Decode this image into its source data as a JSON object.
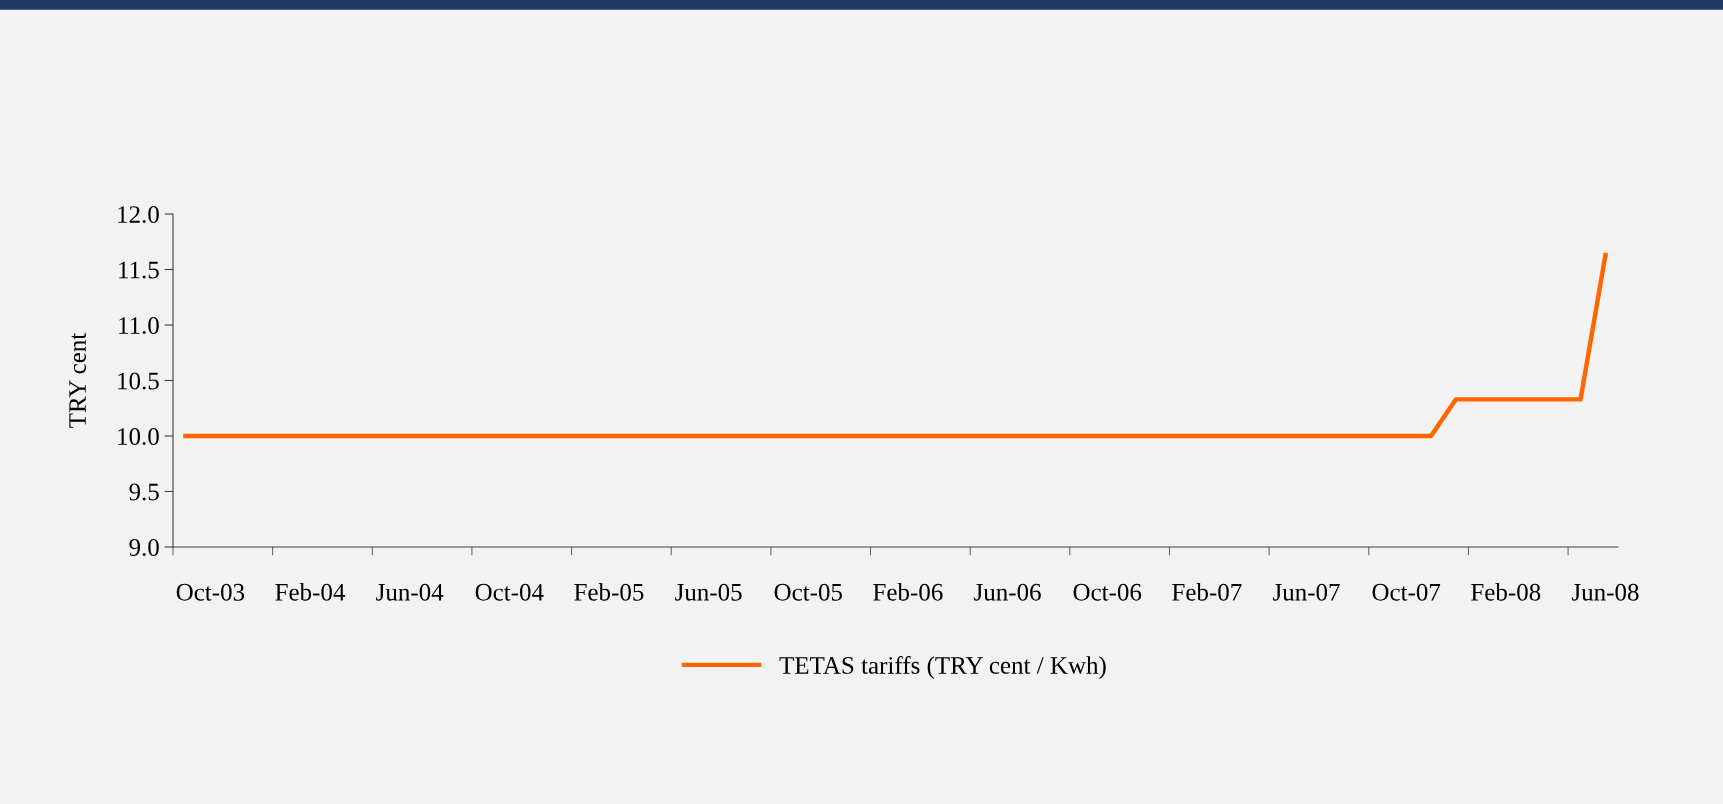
{
  "chart_data": {
    "type": "line",
    "ylabel": "TRY cent",
    "categories": [
      null,
      "Oct-03",
      null,
      null,
      null,
      "Feb-04",
      null,
      null,
      null,
      "Jun-04",
      null,
      null,
      null,
      "Oct-04",
      null,
      null,
      null,
      "Feb-05",
      null,
      null,
      null,
      "Jun-05",
      null,
      null,
      null,
      "Oct-05",
      null,
      null,
      null,
      "Feb-06",
      null,
      null,
      null,
      "Jun-06",
      null,
      null,
      null,
      "Oct-06",
      null,
      null,
      null,
      "Feb-07",
      null,
      null,
      null,
      "Jun-07",
      null,
      null,
      null,
      "Oct-07",
      null,
      null,
      null,
      "Feb-08",
      null,
      null,
      null,
      "Jun-08"
    ],
    "series": [
      {
        "name": "TETAS tariffs (TRY cent / Kwh)",
        "color": "#ff6600",
        "values": [
          10.0,
          10.0,
          10.0,
          10.0,
          10.0,
          10.0,
          10.0,
          10.0,
          10.0,
          10.0,
          10.0,
          10.0,
          10.0,
          10.0,
          10.0,
          10.0,
          10.0,
          10.0,
          10.0,
          10.0,
          10.0,
          10.0,
          10.0,
          10.0,
          10.0,
          10.0,
          10.0,
          10.0,
          10.0,
          10.0,
          10.0,
          10.0,
          10.0,
          10.0,
          10.0,
          10.0,
          10.0,
          10.0,
          10.0,
          10.0,
          10.0,
          10.0,
          10.0,
          10.0,
          10.0,
          10.0,
          10.0,
          10.0,
          10.0,
          10.0,
          10.0,
          10.33,
          10.33,
          10.33,
          10.33,
          10.33,
          10.33,
          11.63
        ]
      }
    ],
    "ylim": [
      9.0,
      12.0
    ],
    "yticks": [
      {
        "value": 9.0,
        "label": "9.0"
      },
      {
        "value": 9.5,
        "label": "9.5"
      },
      {
        "value": 10.0,
        "label": "10.0"
      },
      {
        "value": 10.5,
        "label": "10.5"
      },
      {
        "value": 11.0,
        "label": "11.0"
      },
      {
        "value": 11.5,
        "label": "11.5"
      },
      {
        "value": 12.0,
        "label": "12.0"
      }
    ],
    "grid": false,
    "legend": "bottom",
    "marker": "none",
    "line_style": "solid"
  }
}
